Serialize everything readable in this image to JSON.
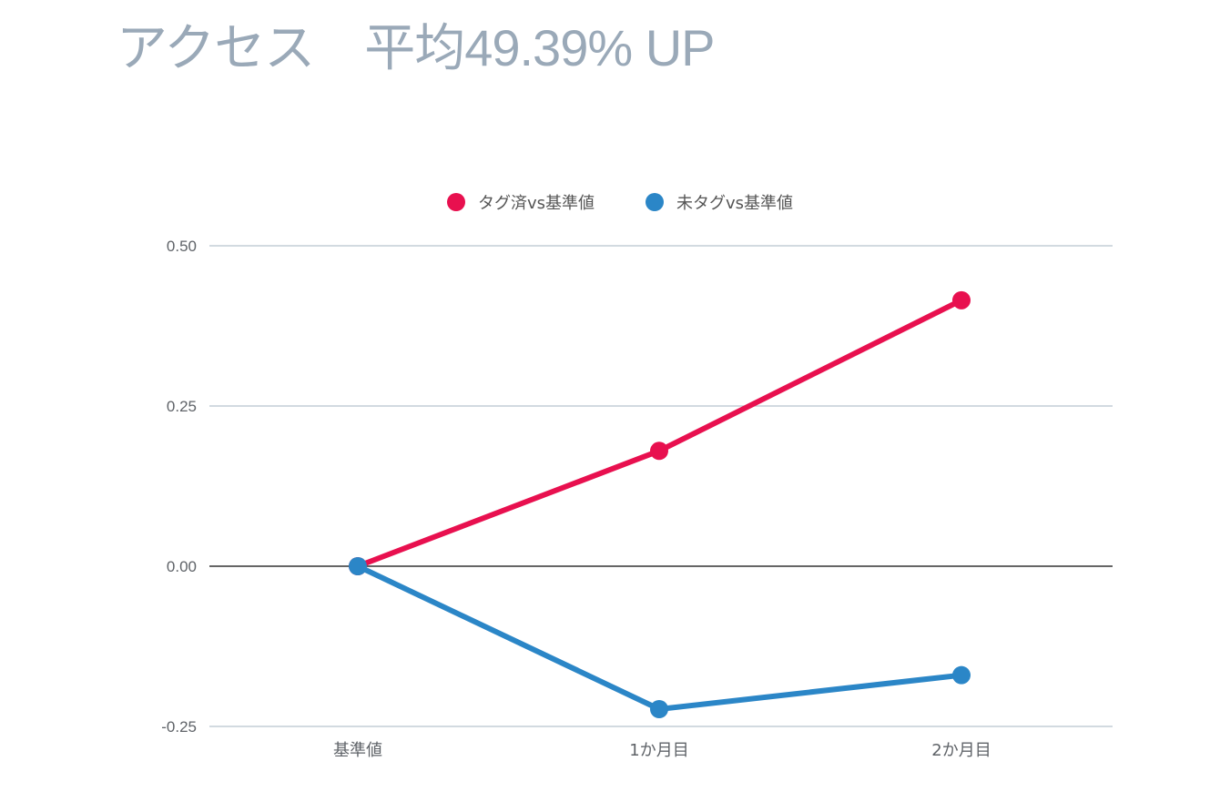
{
  "title": "アクセス　平均49.39% UP",
  "colors": {
    "title": "#9aa9b8",
    "grid": "#b6c3cd",
    "zero_line": "#333333"
  },
  "chart_data": {
    "type": "line",
    "title": "",
    "xlabel": "",
    "ylabel": "",
    "categories": [
      "基準値",
      "1か月目",
      "2か月目"
    ],
    "series": [
      {
        "name": "タグ済vs基準値",
        "color": "#e8104f",
        "values": [
          0,
          0.18,
          0.415
        ]
      },
      {
        "name": "未タグvs基準値",
        "color": "#2b86c7",
        "values": [
          0,
          -0.223,
          -0.17
        ]
      }
    ],
    "ylim": [
      -0.25,
      0.5
    ],
    "yticks": [
      0.5,
      0.25,
      0.0,
      -0.25
    ],
    "ytick_labels": [
      "0.50",
      "0.25",
      "0.00",
      "-0.25"
    ],
    "grid": true,
    "legend_position": "top-center"
  }
}
